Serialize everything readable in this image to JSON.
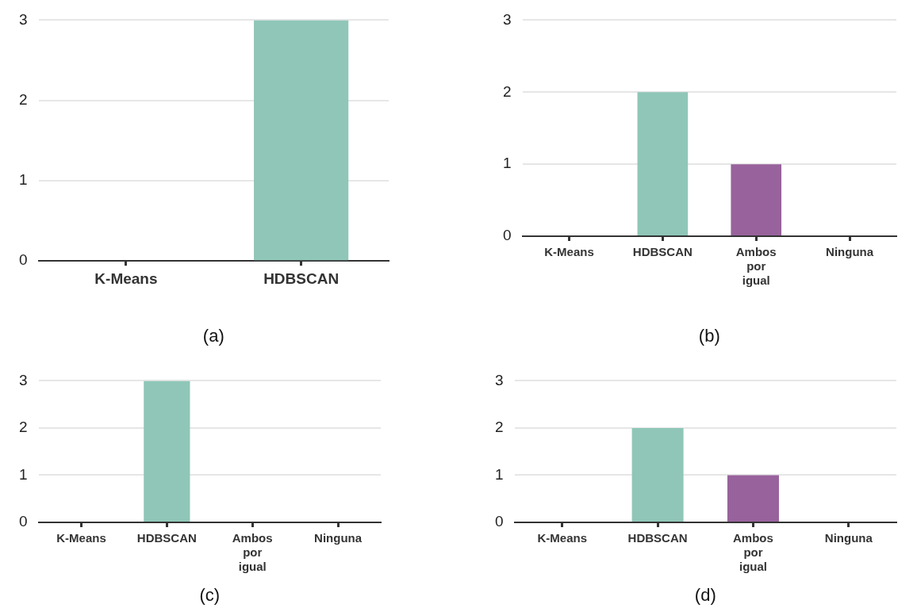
{
  "chart_data": [
    {
      "type": "bar",
      "title": "(a)",
      "categories": [
        "K-Means",
        "HDBSCAN"
      ],
      "values": [
        0,
        3
      ],
      "colors": [
        "#8fc6b8",
        "#8fc6b8"
      ],
      "ylim": [
        0,
        3
      ],
      "yticks": [
        0,
        1,
        2,
        3
      ],
      "grid": "y",
      "legend": false
    },
    {
      "type": "bar",
      "title": "(b)",
      "categories": [
        "K-Means",
        "HDBSCAN",
        "Ambos por igual",
        "Ninguna"
      ],
      "values": [
        0,
        2,
        1,
        0
      ],
      "colors": [
        "#8fc6b8",
        "#8fc6b8",
        "#98629c",
        "#98629c"
      ],
      "ylim": [
        0,
        3
      ],
      "yticks": [
        0,
        1,
        2,
        3
      ],
      "grid": "y",
      "legend": false
    },
    {
      "type": "bar",
      "title": "(c)",
      "categories": [
        "K-Means",
        "HDBSCAN",
        "Ambos por igual",
        "Ninguna"
      ],
      "values": [
        0,
        3,
        0,
        0
      ],
      "colors": [
        "#8fc6b8",
        "#8fc6b8",
        "#98629c",
        "#98629c"
      ],
      "ylim": [
        0,
        3
      ],
      "yticks": [
        0,
        1,
        2,
        3
      ],
      "grid": "y",
      "legend": false
    },
    {
      "type": "bar",
      "title": "(d)",
      "categories": [
        "K-Means",
        "HDBSCAN",
        "Ambos por igual",
        "Ninguna"
      ],
      "values": [
        0,
        2,
        1,
        0
      ],
      "colors": [
        "#8fc6b8",
        "#8fc6b8",
        "#98629c",
        "#98629c"
      ],
      "ylim": [
        0,
        3
      ],
      "yticks": [
        0,
        1,
        2,
        3
      ],
      "grid": "y",
      "legend": false
    }
  ]
}
